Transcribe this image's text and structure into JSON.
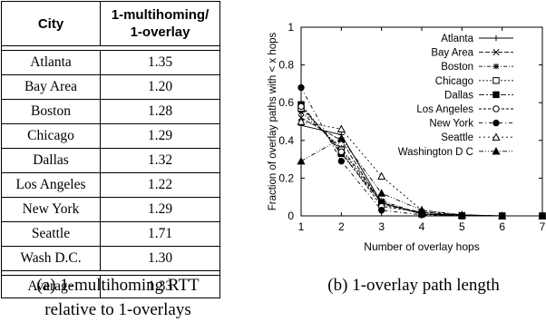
{
  "table": {
    "headers": [
      "City",
      "1-multihoming/\n1-overlay"
    ],
    "header_col2_line1": "1-multihoming/",
    "header_col2_line2": "1-overlay",
    "rows": [
      {
        "city": "Atlanta",
        "value": "1.35"
      },
      {
        "city": "Bay Area",
        "value": "1.20"
      },
      {
        "city": "Boston",
        "value": "1.28"
      },
      {
        "city": "Chicago",
        "value": "1.29"
      },
      {
        "city": "Dallas",
        "value": "1.32"
      },
      {
        "city": "Los Angeles",
        "value": "1.22"
      },
      {
        "city": "New York",
        "value": "1.29"
      },
      {
        "city": "Seattle",
        "value": "1.71"
      },
      {
        "city": "Wash D.C.",
        "value": "1.30"
      }
    ],
    "average": {
      "label": "Average",
      "value": "1.33"
    }
  },
  "captions": {
    "a_line1": "(a) 1-multihoming RTT",
    "a_line2": "relative to 1-overlays",
    "b": "(b) 1-overlay path length"
  },
  "chart_data": {
    "type": "line",
    "xlabel": "Number of overlay hops",
    "ylabel": "Fraction of overlay paths with < x hops",
    "xlim": [
      1,
      7
    ],
    "ylim": [
      0,
      1
    ],
    "xticks": [
      1,
      2,
      3,
      4,
      5,
      6,
      7
    ],
    "yticks": [
      0,
      0.2,
      0.4,
      0.6,
      0.8,
      1
    ],
    "ytick_labels": [
      "0",
      "0.2",
      "0.4",
      "0.6",
      "0.8",
      "1"
    ],
    "legend_position": "top-right",
    "grid": false,
    "x": [
      1,
      2,
      3,
      4,
      5,
      6,
      7
    ],
    "series": [
      {
        "name": "Atlanta",
        "marker": "plus",
        "values": [
          0.48,
          0.43,
          0.07,
          0.01,
          0.005,
          0,
          0
        ]
      },
      {
        "name": "Bay Area",
        "marker": "x",
        "values": [
          0.52,
          0.4,
          0.06,
          0.02,
          0.005,
          0,
          0
        ]
      },
      {
        "name": "Boston",
        "marker": "star",
        "values": [
          0.55,
          0.36,
          0.08,
          0.01,
          0,
          0,
          0
        ]
      },
      {
        "name": "Chicago",
        "marker": "square-open",
        "values": [
          0.57,
          0.35,
          0.07,
          0.01,
          0,
          0,
          0
        ]
      },
      {
        "name": "Dallas",
        "marker": "square-filled",
        "values": [
          0.59,
          0.33,
          0.07,
          0.01,
          0,
          0,
          0
        ]
      },
      {
        "name": "Los Angeles",
        "marker": "circle-open",
        "values": [
          0.58,
          0.34,
          0.05,
          0.02,
          0,
          0,
          0
        ]
      },
      {
        "name": "New York",
        "marker": "circle-filled",
        "values": [
          0.68,
          0.29,
          0.03,
          0.005,
          0,
          0,
          0
        ]
      },
      {
        "name": "Seattle",
        "marker": "triangle-open",
        "values": [
          0.5,
          0.46,
          0.21,
          0.03,
          0.005,
          0,
          0
        ]
      },
      {
        "name": "Washington D C",
        "marker": "triangle-filled",
        "values": [
          0.29,
          0.41,
          0.12,
          0.03,
          0.005,
          0,
          0
        ]
      }
    ]
  }
}
